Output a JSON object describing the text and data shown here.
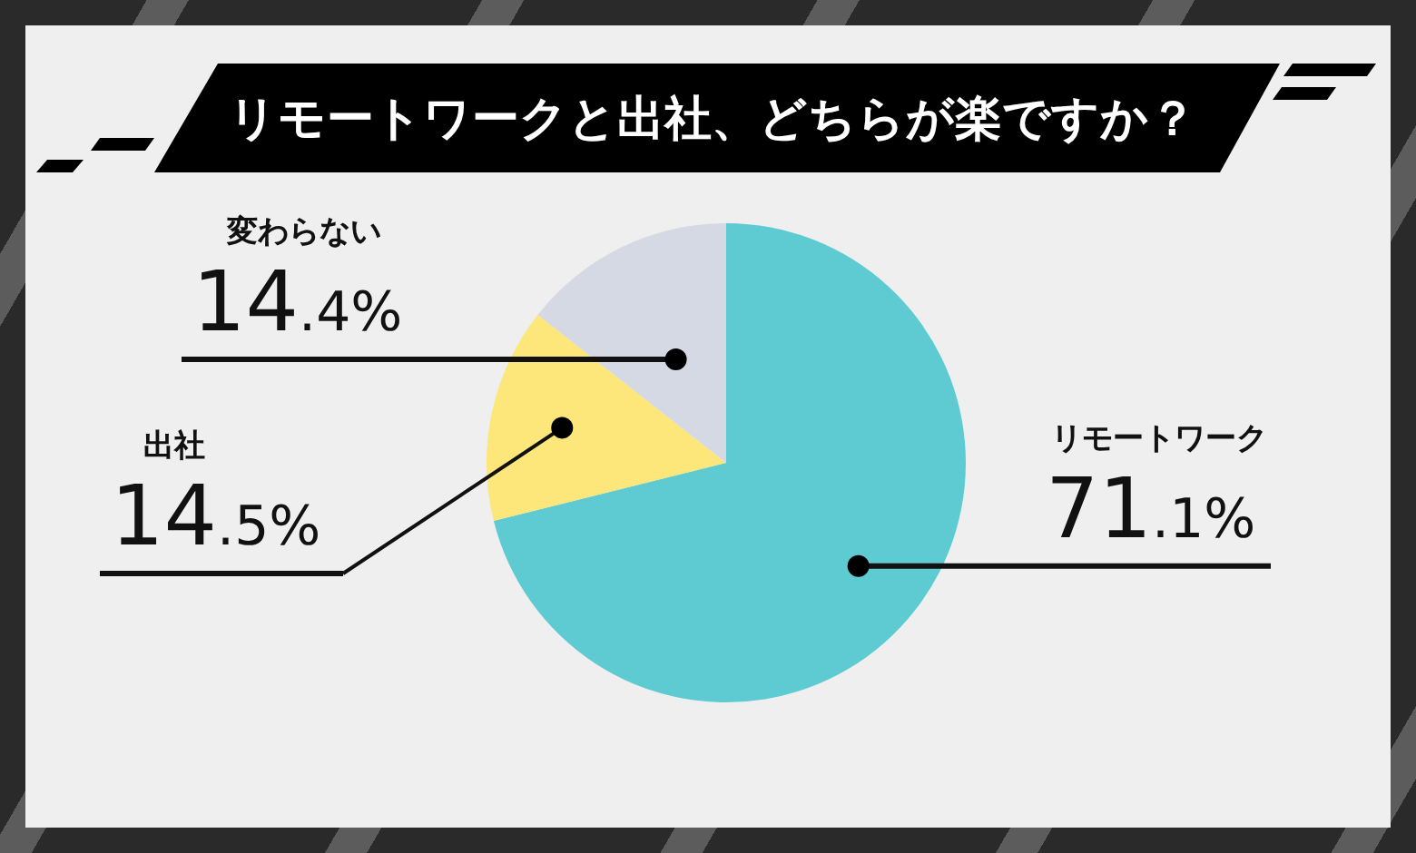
{
  "chart_data": {
    "type": "pie",
    "title": "リモートワークと出社、どちらが楽ですか？",
    "categories": [
      "リモートワーク",
      "出社",
      "変わらない"
    ],
    "values": [
      71.1,
      14.5,
      14.4
    ],
    "value_labels": [
      "71.1%",
      "14.5%",
      "14.4%"
    ],
    "colors": [
      "#5ecbd2",
      "#fde67a",
      "#d5d9e3"
    ]
  }
}
